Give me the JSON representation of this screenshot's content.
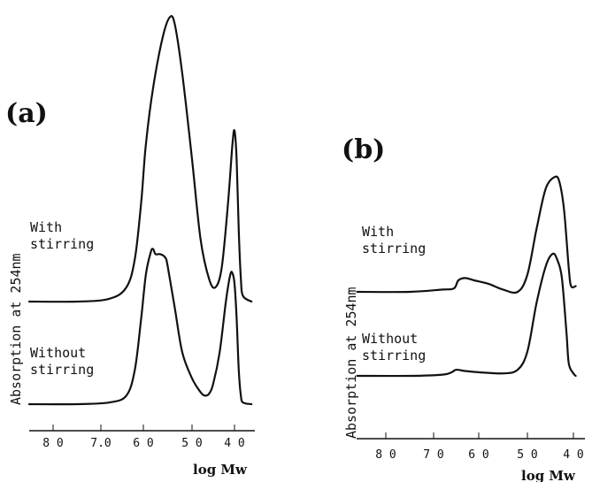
{
  "chart_data": [
    {
      "panel": "(a)",
      "type": "line",
      "ylabel": "Absorption at 254nm",
      "xlabel": "log Mw",
      "xlim": [
        8.5,
        3.7
      ],
      "x_ticks": [
        "8 0",
        "7.0",
        "6 0",
        "5 0",
        "4 0"
      ],
      "series": [
        {
          "name": "With stirring",
          "x": [
            8.5,
            7.5,
            6.8,
            6.4,
            6.2,
            6.05,
            5.95,
            5.8,
            5.6,
            5.45,
            5.35,
            5.2,
            5.0,
            4.8,
            4.6,
            4.45,
            4.3,
            4.15,
            4.05,
            4.0,
            3.95,
            3.9,
            3.85,
            3.8,
            3.6
          ],
          "y": [
            0.0,
            0.0,
            0.01,
            0.05,
            0.15,
            0.35,
            0.55,
            0.75,
            0.93,
            1.0,
            0.97,
            0.8,
            0.5,
            0.22,
            0.08,
            0.05,
            0.12,
            0.35,
            0.55,
            0.6,
            0.5,
            0.25,
            0.08,
            0.02,
            0.0
          ]
        },
        {
          "name": "Without stirring",
          "x": [
            8.5,
            7.5,
            6.8,
            6.4,
            6.2,
            6.05,
            5.95,
            5.85,
            5.8,
            5.75,
            5.65,
            5.55,
            5.5,
            5.35,
            5.2,
            5.0,
            4.8,
            4.7,
            4.6,
            4.5,
            4.35,
            4.2,
            4.1,
            4.05,
            4.0,
            3.95,
            3.9,
            3.85,
            3.8,
            3.6
          ],
          "y": [
            0.0,
            0.0,
            0.01,
            0.05,
            0.2,
            0.5,
            0.75,
            0.88,
            0.9,
            0.87,
            0.87,
            0.85,
            0.8,
            0.55,
            0.3,
            0.15,
            0.07,
            0.05,
            0.06,
            0.12,
            0.3,
            0.6,
            0.75,
            0.76,
            0.7,
            0.5,
            0.2,
            0.05,
            0.01,
            0.0
          ]
        }
      ]
    },
    {
      "panel": "(b)",
      "type": "line",
      "ylabel": "Absorption at 254nm",
      "xlabel": "log Mw",
      "xlim": [
        8.6,
        3.9
      ],
      "x_ticks": [
        "8 0",
        "7 0",
        "6 0",
        "5 0",
        "4 0"
      ],
      "series": [
        {
          "name": "With stirring",
          "x": [
            8.6,
            7.5,
            6.8,
            6.55,
            6.45,
            6.3,
            6.1,
            5.8,
            5.5,
            5.2,
            5.0,
            4.8,
            4.6,
            4.4,
            4.3,
            4.2,
            4.1,
            4.05,
            3.95
          ],
          "y": [
            0.0,
            0.0,
            0.02,
            0.03,
            0.1,
            0.12,
            0.1,
            0.07,
            0.02,
            0.0,
            0.15,
            0.55,
            0.9,
            1.0,
            0.95,
            0.7,
            0.2,
            0.05,
            0.05
          ]
        },
        {
          "name": "Without stirring",
          "x": [
            8.6,
            7.5,
            6.8,
            6.6,
            6.5,
            6.3,
            6.0,
            5.5,
            5.2,
            5.0,
            4.8,
            4.6,
            4.45,
            4.35,
            4.25,
            4.15,
            4.1,
            4.0,
            3.95
          ],
          "y": [
            0.0,
            0.0,
            0.01,
            0.03,
            0.05,
            0.04,
            0.03,
            0.02,
            0.05,
            0.2,
            0.6,
            0.9,
            1.0,
            0.95,
            0.8,
            0.35,
            0.1,
            0.02,
            0.0
          ]
        }
      ]
    }
  ]
}
